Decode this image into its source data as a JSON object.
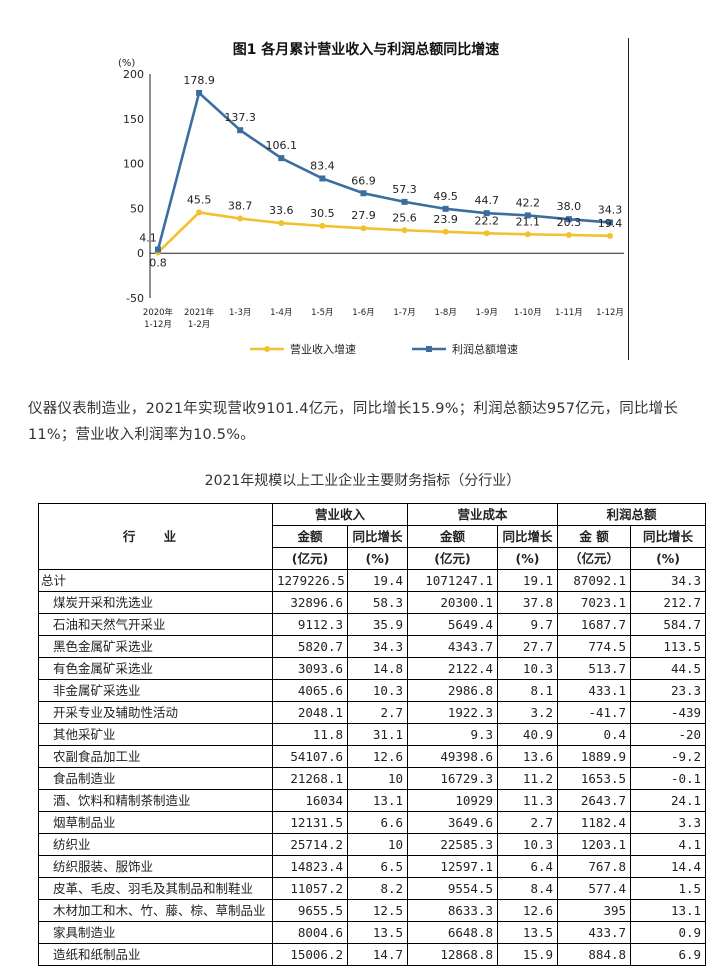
{
  "chart_data": {
    "type": "line",
    "title": "图1  各月累计营业收入与利润总额同比增速",
    "ylabel": "(%)",
    "ylim": [
      -50,
      200
    ],
    "yticks": [
      -50,
      0,
      50,
      100,
      150,
      200
    ],
    "categories": [
      [
        "2020年",
        "1-12月"
      ],
      [
        "2021年",
        "1-2月"
      ],
      [
        "1-3月"
      ],
      [
        "1-4月"
      ],
      [
        "1-5月"
      ],
      [
        "1-6月"
      ],
      [
        "1-7月"
      ],
      [
        "1-8月"
      ],
      [
        "1-9月"
      ],
      [
        "1-10月"
      ],
      [
        "1-11月"
      ],
      [
        "1-12月"
      ]
    ],
    "series": [
      {
        "name": "营业收入增速",
        "color": "#f2c12e",
        "values": [
          0.8,
          45.5,
          38.7,
          33.6,
          30.5,
          27.9,
          25.6,
          23.9,
          22.2,
          21.1,
          20.3,
          19.4
        ],
        "labels": [
          "0.8",
          "45.5",
          "38.7",
          "33.6",
          "30.5",
          "27.9",
          "25.6",
          "23.9",
          "22.2",
          "21.1",
          "20.3",
          "19.4"
        ]
      },
      {
        "name": "利润总额增速",
        "color": "#3b6e9f",
        "values": [
          4.1,
          178.9,
          137.3,
          106.1,
          83.4,
          66.9,
          57.3,
          49.5,
          44.7,
          42.2,
          38.0,
          34.3
        ],
        "labels": [
          "4.1",
          "178.9",
          "137.3",
          "106.1",
          "83.4",
          "66.9",
          "57.3",
          "49.5",
          "44.7",
          "42.2",
          "38.0",
          "34.3"
        ]
      }
    ],
    "legend_position": "bottom"
  },
  "paragraph": "仪器仪表制造业，2021年实现营收9101.4亿元，同比增长15.9%；利润总额达957亿元，同比增长11%；营业收入利润率为10.5%。",
  "table": {
    "title": "2021年规模以上工业企业主要财务指标（分行业）",
    "header": {
      "industry": "行 业",
      "groups": [
        "营业收入",
        "营业成本",
        "利润总额"
      ],
      "sub": [
        "金额",
        "同比增长",
        "金额",
        "同比增长",
        "金 额",
        "同比增长"
      ],
      "units": [
        "(亿元)",
        "(%)",
        "(亿元)",
        "(%)",
        "（亿元）",
        "(%)"
      ]
    },
    "rows": [
      [
        "总计",
        "1279226.5",
        "19.4",
        "1071247.1",
        "19.1",
        "87092.1",
        "34.3"
      ],
      [
        "煤炭开采和洗选业",
        "32896.6",
        "58.3",
        "20300.1",
        "37.8",
        "7023.1",
        "212.7"
      ],
      [
        "石油和天然气开采业",
        "9112.3",
        "35.9",
        "5649.4",
        "9.7",
        "1687.7",
        "584.7"
      ],
      [
        "黑色金属矿采选业",
        "5820.7",
        "34.3",
        "4343.7",
        "27.7",
        "774.5",
        "113.5"
      ],
      [
        "有色金属矿采选业",
        "3093.6",
        "14.8",
        "2122.4",
        "10.3",
        "513.7",
        "44.5"
      ],
      [
        "非金属矿采选业",
        "4065.6",
        "10.3",
        "2986.8",
        "8.1",
        "433.1",
        "23.3"
      ],
      [
        "开采专业及辅助性活动",
        "2048.1",
        "2.7",
        "1922.3",
        "3.2",
        "-41.7",
        "-439"
      ],
      [
        "其他采矿业",
        "11.8",
        "31.1",
        "9.3",
        "40.9",
        "0.4",
        "-20"
      ],
      [
        "农副食品加工业",
        "54107.6",
        "12.6",
        "49398.6",
        "13.6",
        "1889.9",
        "-9.2"
      ],
      [
        "食品制造业",
        "21268.1",
        "10",
        "16729.3",
        "11.2",
        "1653.5",
        "-0.1"
      ],
      [
        "酒、饮料和精制茶制造业",
        "16034",
        "13.1",
        "10929",
        "11.3",
        "2643.7",
        "24.1"
      ],
      [
        "烟草制品业",
        "12131.5",
        "6.6",
        "3649.6",
        "2.7",
        "1182.4",
        "3.3"
      ],
      [
        "纺织业",
        "25714.2",
        "10",
        "22585.3",
        "10.3",
        "1203.1",
        "4.1"
      ],
      [
        "纺织服装、服饰业",
        "14823.4",
        "6.5",
        "12597.1",
        "6.4",
        "767.8",
        "14.4"
      ],
      [
        "皮革、毛皮、羽毛及其制品和制鞋业",
        "11057.2",
        "8.2",
        "9554.5",
        "8.4",
        "577.4",
        "1.5"
      ],
      [
        "木材加工和木、竹、藤、棕、草制品业",
        "9655.5",
        "12.5",
        "8633.3",
        "12.6",
        "395",
        "13.1"
      ],
      [
        "家具制造业",
        "8004.6",
        "13.5",
        "6648.8",
        "13.5",
        "433.7",
        "0.9"
      ],
      [
        "造纸和纸制品业",
        "15006.2",
        "14.7",
        "12868.8",
        "15.9",
        "884.8",
        "6.9"
      ]
    ]
  }
}
